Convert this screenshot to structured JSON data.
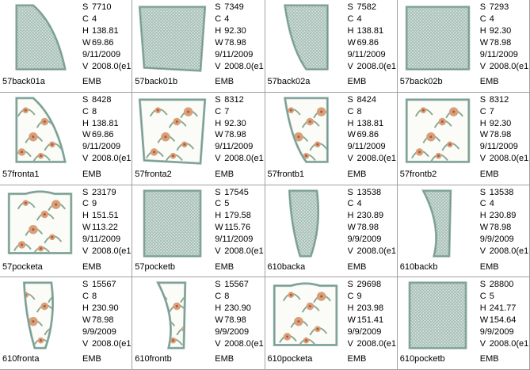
{
  "palette": {
    "frame": "#8fb0a6",
    "fill": "#d9e6e1",
    "mesh": "#9bb5ad",
    "flower": "#d7a07a",
    "leaf": "#88a890",
    "bg": "#ffffff"
  },
  "items": [
    {
      "name": "57back01a",
      "S": "7710",
      "C": "4",
      "H": "138.81",
      "W": "69.86",
      "date": "9/11/2009",
      "V": "2008.0(e1",
      "fmt": "EMB",
      "shape": "quarter-left",
      "pattern": "mesh"
    },
    {
      "name": "57back01b",
      "S": "7349",
      "C": "4",
      "H": "92.30",
      "W": "78.98",
      "date": "9/11/2009",
      "V": "2008.0(e1",
      "fmt": "EMB",
      "shape": "square-tilt",
      "pattern": "mesh"
    },
    {
      "name": "57back02a",
      "S": "7582",
      "C": "4",
      "H": "138.81",
      "W": "69.86",
      "date": "9/11/2009",
      "V": "2008.0(e1",
      "fmt": "EMB",
      "shape": "quarter-right",
      "pattern": "mesh"
    },
    {
      "name": "57back02b",
      "S": "7293",
      "C": "4",
      "H": "92.30",
      "W": "78.98",
      "date": "9/11/2009",
      "V": "2008.0(e1",
      "fmt": "EMB",
      "shape": "square",
      "pattern": "mesh"
    },
    {
      "name": "57fronta1",
      "S": "8428",
      "C": "8",
      "H": "138.81",
      "W": "69.86",
      "date": "9/11/2009",
      "V": "2008.0(e1",
      "fmt": "EMB",
      "shape": "quarter-left",
      "pattern": "floral"
    },
    {
      "name": "57fronta2",
      "S": "8312",
      "C": "7",
      "H": "92.30",
      "W": "78.98",
      "date": "9/11/2009",
      "V": "2008.0(e1",
      "fmt": "EMB",
      "shape": "square-tilt",
      "pattern": "floral"
    },
    {
      "name": "57frontb1",
      "S": "8424",
      "C": "8",
      "H": "138.81",
      "W": "69.86",
      "date": "9/11/2009",
      "V": "2008.0(e1",
      "fmt": "EMB",
      "shape": "quarter-right",
      "pattern": "floral"
    },
    {
      "name": "57frontb2",
      "S": "8312",
      "C": "7",
      "H": "92.30",
      "W": "78.98",
      "date": "9/11/2009",
      "V": "2008.0(e1",
      "fmt": "EMB",
      "shape": "square",
      "pattern": "floral"
    },
    {
      "name": "57pocketa",
      "S": "23179",
      "C": "9",
      "H": "151.51",
      "W": "113.22",
      "date": "9/11/2009",
      "V": "2008.0(e1",
      "fmt": "EMB",
      "shape": "pocket",
      "pattern": "floral"
    },
    {
      "name": "57pocketb",
      "S": "17545",
      "C": "5",
      "H": "179.58",
      "W": "115.76",
      "date": "9/11/2009",
      "V": "2008.0(e1",
      "fmt": "EMB",
      "shape": "rect",
      "pattern": "mesh"
    },
    {
      "name": "610backa",
      "S": "13538",
      "C": "4",
      "H": "230.89",
      "W": "78.98",
      "date": "9/9/2009",
      "V": "2008.0(e1",
      "fmt": "EMB",
      "shape": "tall-left",
      "pattern": "mesh"
    },
    {
      "name": "610backb",
      "S": "13538",
      "C": "4",
      "H": "230.89",
      "W": "78.98",
      "date": "9/9/2009",
      "V": "2008.0(e1",
      "fmt": "EMB",
      "shape": "tall-right",
      "pattern": "mesh"
    },
    {
      "name": "610fronta",
      "S": "15567",
      "C": "8",
      "H": "230.90",
      "W": "78.98",
      "date": "9/9/2009",
      "V": "2008.0(e1",
      "fmt": "EMB",
      "shape": "tall-left",
      "pattern": "floral"
    },
    {
      "name": "610frontb",
      "S": "15567",
      "C": "8",
      "H": "230.90",
      "W": "78.98",
      "date": "9/9/2009",
      "V": "2008.0(e1",
      "fmt": "EMB",
      "shape": "tall-right",
      "pattern": "floral"
    },
    {
      "name": "610pocketa",
      "S": "29698",
      "C": "9",
      "H": "203.98",
      "W": "151.41",
      "date": "9/9/2009",
      "V": "2008.0(e1",
      "fmt": "EMB",
      "shape": "pocket",
      "pattern": "floral"
    },
    {
      "name": "610pocketb",
      "S": "28800",
      "C": "5",
      "H": "241.77",
      "W": "154.64",
      "date": "9/9/2009",
      "V": "2008.0(e1",
      "fmt": "EMB",
      "shape": "rect",
      "pattern": "mesh"
    }
  ],
  "labels": {
    "S": "S",
    "C": "C",
    "H": "H",
    "W": "W",
    "V": "V"
  }
}
